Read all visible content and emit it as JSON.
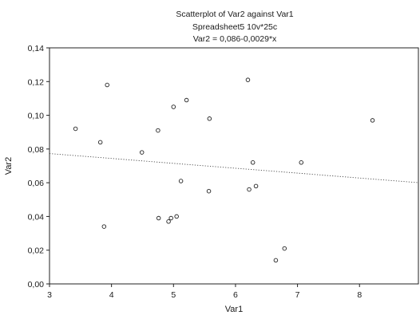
{
  "chart_data": {
    "type": "scatter",
    "title": "Scatterplot of Var2 against Var1",
    "subtitle": "Spreadsheet5 10v*25c",
    "equation": "Var2 = 0,086-0,0029*x",
    "xlabel": "Var1",
    "ylabel": "Var2",
    "xlim": [
      3,
      8.95
    ],
    "ylim": [
      0,
      0.14
    ],
    "x_ticks": [
      3,
      4,
      5,
      6,
      7,
      8
    ],
    "x_tick_labels": [
      "3",
      "4",
      "5",
      "6",
      "7",
      "8"
    ],
    "y_ticks": [
      0,
      0.02,
      0.04,
      0.06,
      0.08,
      0.1,
      0.12,
      0.14
    ],
    "y_tick_labels": [
      "0,00",
      "0,02",
      "0,04",
      "0,06",
      "0,08",
      "0,10",
      "0,12",
      "0,14"
    ],
    "grid": false,
    "regression": {
      "intercept": 0.086,
      "slope": -0.0029,
      "style": "dotted"
    },
    "points": [
      {
        "x": 3.42,
        "y": 0.092
      },
      {
        "x": 3.82,
        "y": 0.084
      },
      {
        "x": 3.88,
        "y": 0.034
      },
      {
        "x": 3.93,
        "y": 0.118
      },
      {
        "x": 4.49,
        "y": 0.078
      },
      {
        "x": 4.75,
        "y": 0.091
      },
      {
        "x": 4.76,
        "y": 0.039
      },
      {
        "x": 4.92,
        "y": 0.037
      },
      {
        "x": 4.96,
        "y": 0.039
      },
      {
        "x": 5.0,
        "y": 0.105
      },
      {
        "x": 5.05,
        "y": 0.04
      },
      {
        "x": 5.12,
        "y": 0.061
      },
      {
        "x": 5.21,
        "y": 0.109
      },
      {
        "x": 5.57,
        "y": 0.055
      },
      {
        "x": 5.58,
        "y": 0.098
      },
      {
        "x": 6.2,
        "y": 0.121
      },
      {
        "x": 6.22,
        "y": 0.056
      },
      {
        "x": 6.28,
        "y": 0.072
      },
      {
        "x": 6.33,
        "y": 0.058
      },
      {
        "x": 6.65,
        "y": 0.014
      },
      {
        "x": 6.79,
        "y": 0.021
      },
      {
        "x": 7.06,
        "y": 0.072
      },
      {
        "x": 8.21,
        "y": 0.097
      }
    ]
  }
}
